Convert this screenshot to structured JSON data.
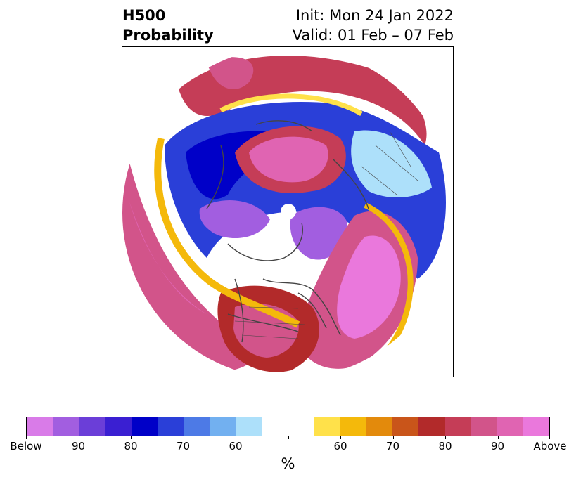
{
  "title": {
    "left_line1": "H500",
    "left_line2": "Probability",
    "right_line1": "Init: Mon 24 Jan 2022",
    "right_line2": "Valid: 01 Feb – 07 Feb"
  },
  "map": {
    "projection": "north-polar-stereographic",
    "background": "#ffffff",
    "coastline_color": "#444444"
  },
  "colorbar": {
    "colors": [
      "#d97be8",
      "#a25ee0",
      "#6b3ed8",
      "#3a1fd2",
      "#0000c8",
      "#2a3fd8",
      "#4d7ae6",
      "#72b0f0",
      "#ade0fa",
      "#ffffff",
      "#ffffff",
      "#ffe14a",
      "#f4b90b",
      "#e38a0c",
      "#c9551a",
      "#b22a2a",
      "#c53d57",
      "#d2548a",
      "#e064b2",
      "#ea78dc"
    ],
    "tick_labels": [
      "Below",
      "90",
      "80",
      "70",
      "60",
      "",
      "60",
      "70",
      "80",
      "90",
      "Above"
    ],
    "unit_label": "%"
  }
}
